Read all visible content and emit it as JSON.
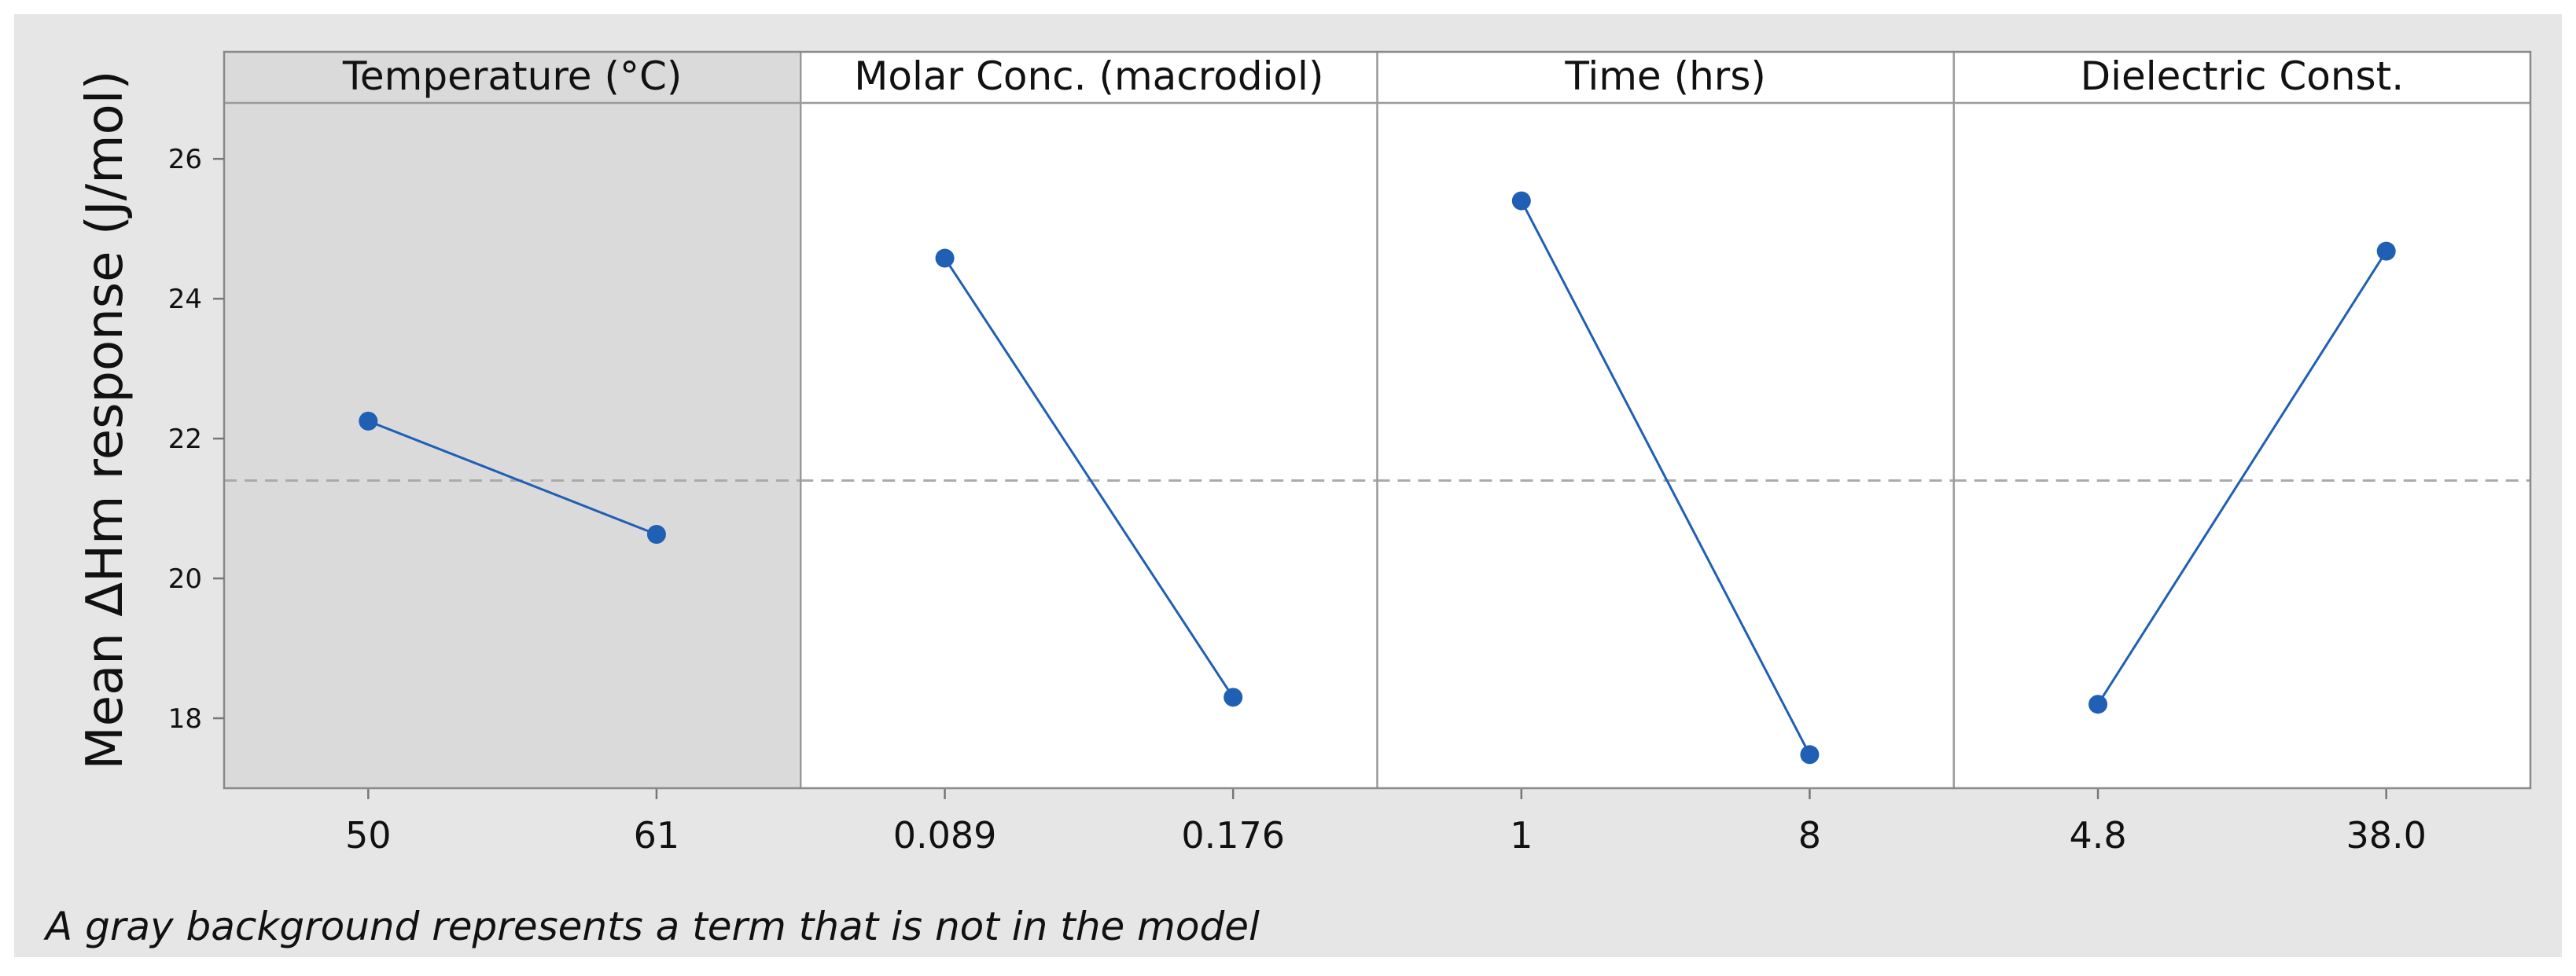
{
  "chart_data": {
    "type": "line",
    "ylabel": "Mean ΔHm response (J/mol)",
    "y_ticks": [
      18,
      20,
      22,
      24,
      26
    ],
    "ylim": [
      17.0,
      26.8
    ],
    "reference_mean": 21.4,
    "footnote": "A gray background represents a term that is not in the model",
    "colors": {
      "series": "#1f5fb4",
      "inactive_panel_bg": "#dadada",
      "frame_bg": "#e6e6e6",
      "reference_line": "#aaaaaa"
    },
    "panels": [
      {
        "title": "Temperature (°C)",
        "levels": [
          "50",
          "61"
        ],
        "values": [
          22.25,
          20.63
        ],
        "in_model": false
      },
      {
        "title": "Molar Conc. (macrodiol)",
        "levels": [
          "0.089",
          "0.176"
        ],
        "values": [
          24.58,
          18.3
        ],
        "in_model": true
      },
      {
        "title": "Time (hrs)",
        "levels": [
          "1",
          "8"
        ],
        "values": [
          25.4,
          17.48
        ],
        "in_model": true
      },
      {
        "title": "Dielectric Const.",
        "levels": [
          "4.8",
          "38.0"
        ],
        "values": [
          18.2,
          24.68
        ],
        "in_model": true
      }
    ]
  }
}
